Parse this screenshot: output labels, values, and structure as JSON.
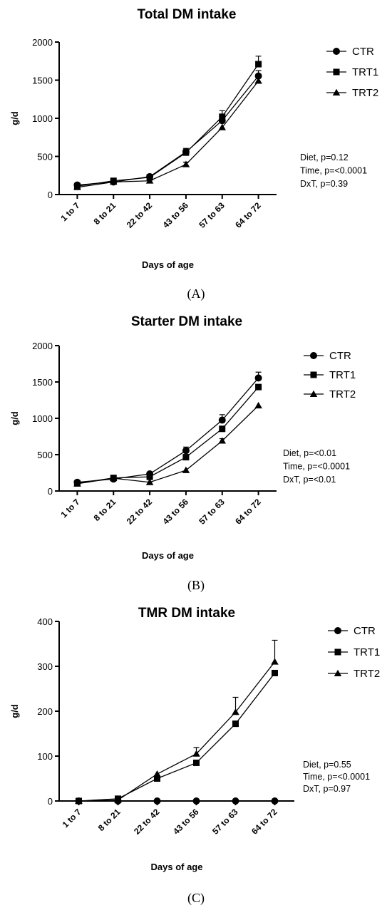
{
  "chart_data": [
    {
      "type": "line",
      "title": "Total DM intake",
      "xlabel": "Days of age",
      "ylabel": "g/d",
      "ylim": [
        0,
        2000
      ],
      "yticks": [
        0,
        500,
        1000,
        1500,
        2000
      ],
      "categories": [
        "1 to 7",
        "8 to 21",
        "22 to 42",
        "43 to 56",
        "57 to 63",
        "64 to 72"
      ],
      "series": [
        {
          "name": "CTR",
          "marker": "circle",
          "values": [
            125,
            165,
            235,
            560,
            970,
            1555
          ],
          "err": [
            0,
            0,
            0,
            45,
            60,
            70
          ]
        },
        {
          "name": "TRT1",
          "marker": "square",
          "values": [
            110,
            180,
            225,
            550,
            1020,
            1710
          ],
          "err": [
            0,
            0,
            0,
            40,
            80,
            105
          ]
        },
        {
          "name": "TRT2",
          "marker": "triangle",
          "values": [
            95,
            165,
            180,
            395,
            880,
            1490
          ],
          "err": [
            0,
            0,
            0,
            30,
            0,
            0
          ]
        }
      ],
      "stats": [
        "Diet, p=0.12",
        "Time, p=<0.0001",
        "DxT, p=0.39"
      ],
      "panel_label": "(A)",
      "legend_position": "top-right",
      "grid": false
    },
    {
      "type": "line",
      "title": "Starter DM intake",
      "xlabel": "Days of age",
      "ylabel": "g/d",
      "ylim": [
        0,
        2000
      ],
      "yticks": [
        0,
        500,
        1000,
        1500,
        2000
      ],
      "categories": [
        "1 to 7",
        "8 to 21",
        "22 to 42",
        "43 to 56",
        "57 to 63",
        "64 to 72"
      ],
      "series": [
        {
          "name": "CTR",
          "marker": "circle",
          "values": [
            120,
            165,
            235,
            555,
            975,
            1555
          ],
          "err": [
            0,
            0,
            0,
            50,
            75,
            80
          ]
        },
        {
          "name": "TRT1",
          "marker": "square",
          "values": [
            105,
            180,
            195,
            465,
            855,
            1430
          ],
          "err": [
            0,
            0,
            0,
            0,
            0,
            0
          ]
        },
        {
          "name": "TRT2",
          "marker": "triangle",
          "values": [
            100,
            175,
            120,
            285,
            690,
            1175
          ],
          "err": [
            0,
            0,
            0,
            0,
            30,
            0
          ]
        }
      ],
      "stats": [
        "Diet, p=<0.01",
        "Time, p=<0.0001",
        "DxT, p=<0.01"
      ],
      "panel_label": "(B)",
      "legend_position": "top-right",
      "grid": false
    },
    {
      "type": "line",
      "title": "TMR DM intake",
      "xlabel": "Days of age",
      "ylabel": "g/d",
      "ylim": [
        0,
        400
      ],
      "yticks": [
        0,
        100,
        200,
        300,
        400
      ],
      "categories": [
        "1 to 7",
        "8 to 21",
        "22 to 42",
        "43 to 56",
        "57 to 63",
        "64 to 72"
      ],
      "series": [
        {
          "name": "CTR",
          "marker": "circle",
          "values": [
            0,
            0,
            0,
            0,
            0,
            0
          ],
          "err": [
            0,
            0,
            0,
            0,
            0,
            0
          ]
        },
        {
          "name": "TRT1",
          "marker": "square",
          "values": [
            0,
            5,
            50,
            85,
            172,
            285
          ],
          "err": [
            0,
            0,
            0,
            0,
            0,
            0
          ]
        },
        {
          "name": "TRT2",
          "marker": "triangle",
          "values": [
            0,
            2,
            60,
            105,
            198,
            310
          ],
          "err": [
            0,
            0,
            0,
            14,
            33,
            48
          ]
        }
      ],
      "stats": [
        "Diet, p=0.55",
        "Time, p=<0.0001",
        "DxT, p=0.97"
      ],
      "panel_label": "(C)",
      "legend_position": "top-right",
      "grid": false
    }
  ]
}
